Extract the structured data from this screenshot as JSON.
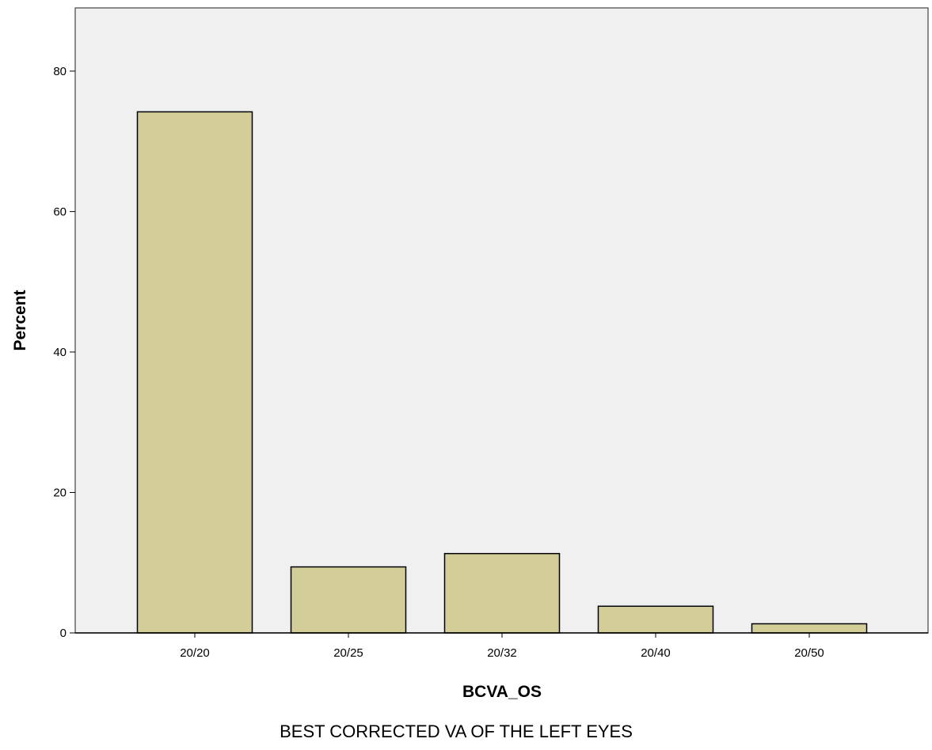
{
  "chart_data": {
    "type": "bar",
    "categories": [
      "20/20",
      "20/25",
      "20/32",
      "20/40",
      "20/50"
    ],
    "values": [
      74.2,
      9.4,
      11.3,
      3.8,
      1.3
    ],
    "title": "",
    "xlabel": "BCVA_OS",
    "ylabel": "Percent",
    "caption": "BEST CORRECTED VA OF THE LEFT EYES",
    "ylim": [
      0,
      89
    ],
    "yticks": [
      0,
      20,
      40,
      60,
      80
    ],
    "grid": false,
    "legend": "none",
    "colors": {
      "plot_background": "#f0f0f0",
      "bar_fill": "#d3ce97",
      "bar_stroke": "#000000",
      "frame": "#444444"
    }
  }
}
